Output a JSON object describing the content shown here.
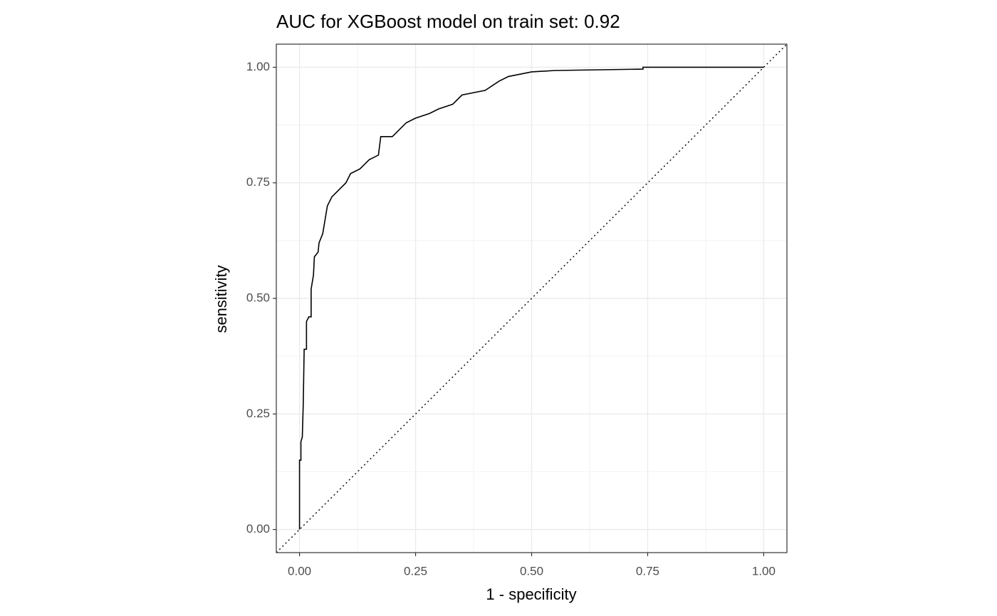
{
  "chart_data": {
    "type": "line",
    "title": "AUC for XGBoost model on train set: 0.92",
    "x_label": "1 - specificity",
    "y_label": "sensitivity",
    "xlim": [
      -0.05,
      1.05
    ],
    "ylim": [
      -0.05,
      1.05
    ],
    "xticks": [
      {
        "value": 0,
        "label": "0.00"
      },
      {
        "value": 0.25,
        "label": "0.25"
      },
      {
        "value": 0.5,
        "label": "0.50"
      },
      {
        "value": 0.75,
        "label": "0.75"
      },
      {
        "value": 1,
        "label": "1.00"
      }
    ],
    "yticks": [
      {
        "value": 0,
        "label": "0.00"
      },
      {
        "value": 0.25,
        "label": "0.25"
      },
      {
        "value": 0.5,
        "label": "0.50"
      },
      {
        "value": 0.75,
        "label": "0.75"
      },
      {
        "value": 1,
        "label": "1.00"
      }
    ],
    "minor_ticks": [
      0.125,
      0.375,
      0.625,
      0.875
    ],
    "grid": true,
    "abline": {
      "slope": 1,
      "intercept": 0
    },
    "color": "#000000",
    "x": [
      0,
      0,
      0.003,
      0.003,
      0.006,
      0.008,
      0.01,
      0.015,
      0.015,
      0.02,
      0.025,
      0.025,
      0.03,
      0.032,
      0.04,
      0.042,
      0.05,
      0.055,
      0.06,
      0.07,
      0.08,
      0.09,
      0.1,
      0.11,
      0.13,
      0.15,
      0.17,
      0.175,
      0.2,
      0.21,
      0.23,
      0.25,
      0.28,
      0.3,
      0.33,
      0.35,
      0.4,
      0.43,
      0.45,
      0.5,
      0.55,
      0.74,
      0.74,
      1
    ],
    "y": [
      0,
      0.15,
      0.15,
      0.19,
      0.2,
      0.27,
      0.39,
      0.39,
      0.45,
      0.46,
      0.46,
      0.52,
      0.55,
      0.59,
      0.6,
      0.62,
      0.64,
      0.67,
      0.7,
      0.72,
      0.73,
      0.74,
      0.75,
      0.77,
      0.78,
      0.8,
      0.81,
      0.85,
      0.85,
      0.86,
      0.88,
      0.89,
      0.9,
      0.91,
      0.92,
      0.94,
      0.95,
      0.97,
      0.98,
      0.99,
      0.993,
      0.996,
      1,
      1
    ]
  }
}
